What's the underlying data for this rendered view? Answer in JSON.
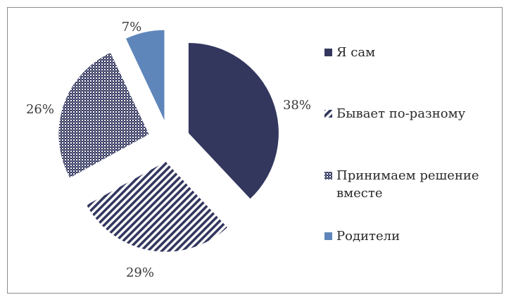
{
  "chart_data": {
    "type": "pie",
    "exploded": true,
    "legend_position": "right",
    "slices": [
      {
        "label": "Я сам",
        "value": 38,
        "data_label": "38%",
        "color": "#33375e",
        "pattern": "solid"
      },
      {
        "label": "Бывает по-разному",
        "value": 29,
        "data_label": "29%",
        "color": "#33375e",
        "pattern": "diagonal-stripes"
      },
      {
        "label": "Принимаем решение вместе",
        "value": 26,
        "data_label": "26%",
        "color": "#33375e",
        "pattern": "crosshatch"
      },
      {
        "label": "Родители",
        "value": 7,
        "data_label": "7%",
        "color": "#5f86bb",
        "pattern": "solid"
      }
    ],
    "legend": [
      {
        "lines": [
          "Я сам"
        ]
      },
      {
        "lines": [
          "Бывает по-разному"
        ]
      },
      {
        "lines": [
          "Принимаем решение",
          "вместе"
        ]
      },
      {
        "lines": [
          "Родители"
        ]
      }
    ]
  }
}
